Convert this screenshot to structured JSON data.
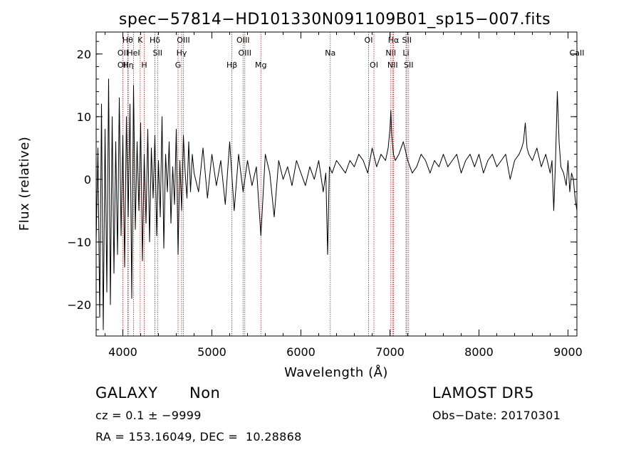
{
  "chart_data": {
    "type": "line",
    "title": "spec−57814−HD101330N091109B01_sp15−007.fits",
    "xlabel": "Wavelength (Å)",
    "ylabel": "Flux (relative)",
    "xlim": [
      3700,
      9100
    ],
    "ylim": [
      -25,
      23.5
    ],
    "x_ticks": [
      4000,
      5000,
      6000,
      7000,
      8000,
      9000
    ],
    "y_ticks": [
      -20,
      -10,
      0,
      10,
      20
    ],
    "y_tick_labels": [
      "−20",
      "−10",
      "0",
      "10",
      "20"
    ],
    "line_color": "#000000",
    "marker_color": "#b22222",
    "grid": false,
    "series": [
      {
        "x": [
          3700,
          3720,
          3740,
          3760,
          3780,
          3800,
          3820,
          3840,
          3860,
          3880,
          3900,
          3920,
          3940,
          3960,
          3980,
          4000,
          4020,
          4040,
          4060,
          4080,
          4100,
          4120,
          4140,
          4160,
          4180,
          4200,
          4220,
          4240,
          4260,
          4280,
          4300,
          4320,
          4340,
          4360,
          4380,
          4400,
          4420,
          4440,
          4460,
          4480,
          4500,
          4520,
          4540,
          4560,
          4580,
          4600,
          4620,
          4640,
          4660,
          4680,
          4700,
          4720,
          4740,
          4760,
          4780,
          4800,
          4850,
          4900,
          4950,
          5000,
          5050,
          5100,
          5150,
          5200,
          5250,
          5300,
          5350,
          5400,
          5450,
          5500,
          5550,
          5600,
          5650,
          5700,
          5750,
          5800,
          5850,
          5900,
          5950,
          6000,
          6050,
          6100,
          6150,
          6200,
          6250,
          6280,
          6300,
          6320,
          6350,
          6400,
          6450,
          6500,
          6550,
          6600,
          6650,
          6700,
          6750,
          6800,
          6850,
          6900,
          6950,
          6980,
          7000,
          7010,
          7020,
          7040,
          7060,
          7100,
          7150,
          7200,
          7250,
          7300,
          7350,
          7400,
          7450,
          7500,
          7550,
          7600,
          7650,
          7700,
          7750,
          7800,
          7850,
          7900,
          7950,
          8000,
          8050,
          8100,
          8150,
          8200,
          8250,
          8300,
          8350,
          8400,
          8450,
          8480,
          8500,
          8520,
          8540,
          8560,
          8600,
          8650,
          8700,
          8750,
          8800,
          8820,
          8840,
          8860,
          8880,
          8900,
          8920,
          8950,
          8980,
          9000,
          9020,
          9040,
          9060,
          9080,
          9100
        ],
        "y": [
          -10,
          5,
          -22,
          12,
          -24,
          8,
          -18,
          16,
          -20,
          10,
          -15,
          6,
          -12,
          13,
          -9,
          7,
          -14,
          10,
          -6,
          12,
          -19,
          15,
          -8,
          6,
          -5,
          9,
          -13,
          4,
          -7,
          8,
          -10,
          5,
          -3,
          7,
          -9,
          3,
          -6,
          10,
          -11,
          4,
          -2,
          6,
          -7,
          2,
          -4,
          8,
          -12,
          3,
          -5,
          7,
          1,
          -3,
          6,
          -2,
          4,
          1,
          -2,
          5,
          -3,
          4,
          -1,
          3,
          -4,
          6,
          -5,
          4,
          -2,
          3,
          -1,
          2,
          -9,
          4,
          1,
          -6,
          3,
          0,
          2,
          -1,
          3,
          1,
          -1,
          2,
          0,
          3,
          -2,
          1,
          -12,
          2,
          1,
          3,
          2,
          1,
          3,
          2,
          4,
          3,
          1,
          5,
          2,
          4,
          3,
          5,
          8,
          11,
          7,
          4,
          3,
          4,
          6,
          3,
          1,
          2,
          4,
          3,
          1,
          3,
          2,
          4,
          2,
          3,
          4,
          1,
          3,
          4,
          2,
          4,
          1,
          3,
          4,
          2,
          3,
          4,
          0,
          3,
          4,
          5,
          6,
          9,
          5,
          4,
          3,
          5,
          2,
          4,
          1,
          3,
          -5,
          3,
          14,
          6,
          2,
          1,
          -1,
          3,
          -2,
          1,
          0,
          -3,
          -5
        ]
      }
    ],
    "lines": [
      {
        "wl": 3727,
        "labels": [
          "OII",
          "OII"
        ]
      },
      {
        "wl": 3968,
        "labels": [
          "H"
        ]
      },
      {
        "wl": 4101,
        "labels": [
          "Hδ"
        ]
      },
      {
        "wl": 4340,
        "labels": [
          "Hγ"
        ]
      },
      {
        "wl": 4861,
        "labels": [
          "Hβ"
        ]
      },
      {
        "wl": 4959,
        "labels": [
          "OIII"
        ]
      },
      {
        "wl": 5007,
        "labels": [
          "OIII"
        ]
      },
      {
        "wl": 6300,
        "labels": [
          "OI"
        ]
      }
    ]
  },
  "line_markers": [
    {
      "x": 4000,
      "label": "OII",
      "row": 1
    },
    {
      "x": 4000,
      "label": "OII",
      "row": 2
    },
    {
      "x": 4055,
      "label": "Hθ",
      "row": 0
    },
    {
      "x": 4060,
      "label": "Hη",
      "row": 2
    },
    {
      "x": 4120,
      "label": "HeI",
      "row": 1
    },
    {
      "x": 4195,
      "label": "K",
      "row": 0
    },
    {
      "x": 4240,
      "label": "H",
      "row": 2
    },
    {
      "x": 4360,
      "label": "Hδ",
      "row": 0
    },
    {
      "x": 4390,
      "label": "SII",
      "row": 1
    },
    {
      "x": 4620,
      "label": "G",
      "row": 2
    },
    {
      "x": 4660,
      "label": "Hγ",
      "row": 1
    },
    {
      "x": 4680,
      "label": "OIII",
      "row": 0
    },
    {
      "x": 5225,
      "label": "Hβ",
      "row": 2
    },
    {
      "x": 5350,
      "label": "OIII",
      "row": 0
    },
    {
      "x": 5370,
      "label": "OIII",
      "row": 1
    },
    {
      "x": 5550,
      "label": "Mg",
      "row": 2
    },
    {
      "x": 6330,
      "label": "Na",
      "row": 1
    },
    {
      "x": 6760,
      "label": "OI",
      "row": 0
    },
    {
      "x": 6820,
      "label": "OI",
      "row": 2
    },
    {
      "x": 7040,
      "label": "Hα",
      "row": 0
    },
    {
      "x": 7010,
      "label": "NII",
      "row": 1
    },
    {
      "x": 7030,
      "label": "NII",
      "row": 2
    },
    {
      "x": 7190,
      "label": "SII",
      "row": 0
    },
    {
      "x": 7180,
      "label": "Li",
      "row": 1
    },
    {
      "x": 7210,
      "label": "SII",
      "row": 2
    },
    {
      "x": 9100,
      "label": "CaII",
      "row": 1
    }
  ],
  "info": {
    "class": "GALAXY",
    "subclass": "Non",
    "cz": "cz = 0.1 ± −9999",
    "coords": "RA = 153.16049, DEC =  10.28868",
    "survey": "LAMOST DR5",
    "obs_date": "Obs−Date: 20170301"
  }
}
